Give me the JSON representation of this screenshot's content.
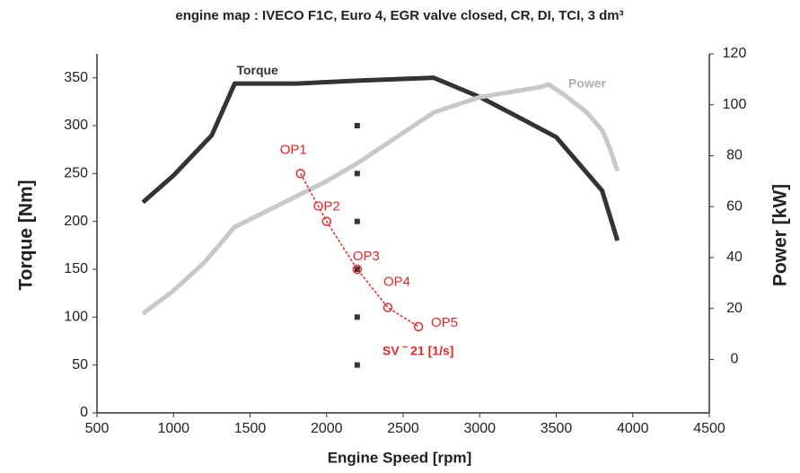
{
  "chart_data": {
    "type": "line",
    "title": "engine map : IVECO F1C, Euro 4, EGR valve closed, CR, DI, TCI, 3 dm³",
    "x_label": "Engine Speed [rpm]",
    "y_label": "Torque [Nm]",
    "y2_label": "Power [kW]",
    "xlim": [
      500,
      4500
    ],
    "xticks": [
      500,
      1000,
      1500,
      2000,
      2500,
      3000,
      3500,
      4000,
      4500
    ],
    "ylim": [
      0,
      375
    ],
    "yticks": [
      0,
      50,
      100,
      150,
      200,
      250,
      300,
      350
    ],
    "y2lim": [
      -21,
      120
    ],
    "y2ticks": [
      0,
      20,
      40,
      60,
      80,
      100,
      120
    ],
    "series": [
      {
        "name": "Torque",
        "color": "#333333",
        "x": [
          800,
          1000,
          1250,
          1400,
          1800,
          2200,
          2700,
          3000,
          3300,
          3500,
          3800,
          3900
        ],
        "values": [
          220,
          248,
          290,
          344,
          344,
          347,
          350,
          330,
          305,
          288,
          232,
          180
        ]
      },
      {
        "name": "Power",
        "color": "#c8c8cc",
        "axis": "y2",
        "x": [
          800,
          1000,
          1200,
          1300,
          1400,
          1500,
          1800,
          2000,
          2200,
          2500,
          2700,
          3000,
          3200,
          3400,
          3450,
          3550,
          3700,
          3800,
          3850,
          3900
        ],
        "values": [
          18,
          27,
          38,
          45,
          52,
          55,
          64,
          70,
          77,
          89,
          97,
          103,
          105,
          107,
          108,
          104,
          97,
          90,
          83,
          74
        ]
      }
    ],
    "operating_points": {
      "color": "#e02828",
      "labels": [
        "OP1",
        "OP2",
        "OP3",
        "OP4",
        "OP5"
      ],
      "x": [
        1830,
        2000,
        2200,
        2400,
        2600
      ],
      "values": [
        250,
        200,
        150,
        110,
        90
      ]
    },
    "measurement_points": {
      "color": "#333333",
      "x": [
        2200,
        2200,
        2200,
        2200,
        2200,
        2200
      ],
      "values": [
        300,
        250,
        200,
        150,
        100,
        50
      ]
    },
    "annotation": "SV ˜ 21 [1/s]"
  }
}
